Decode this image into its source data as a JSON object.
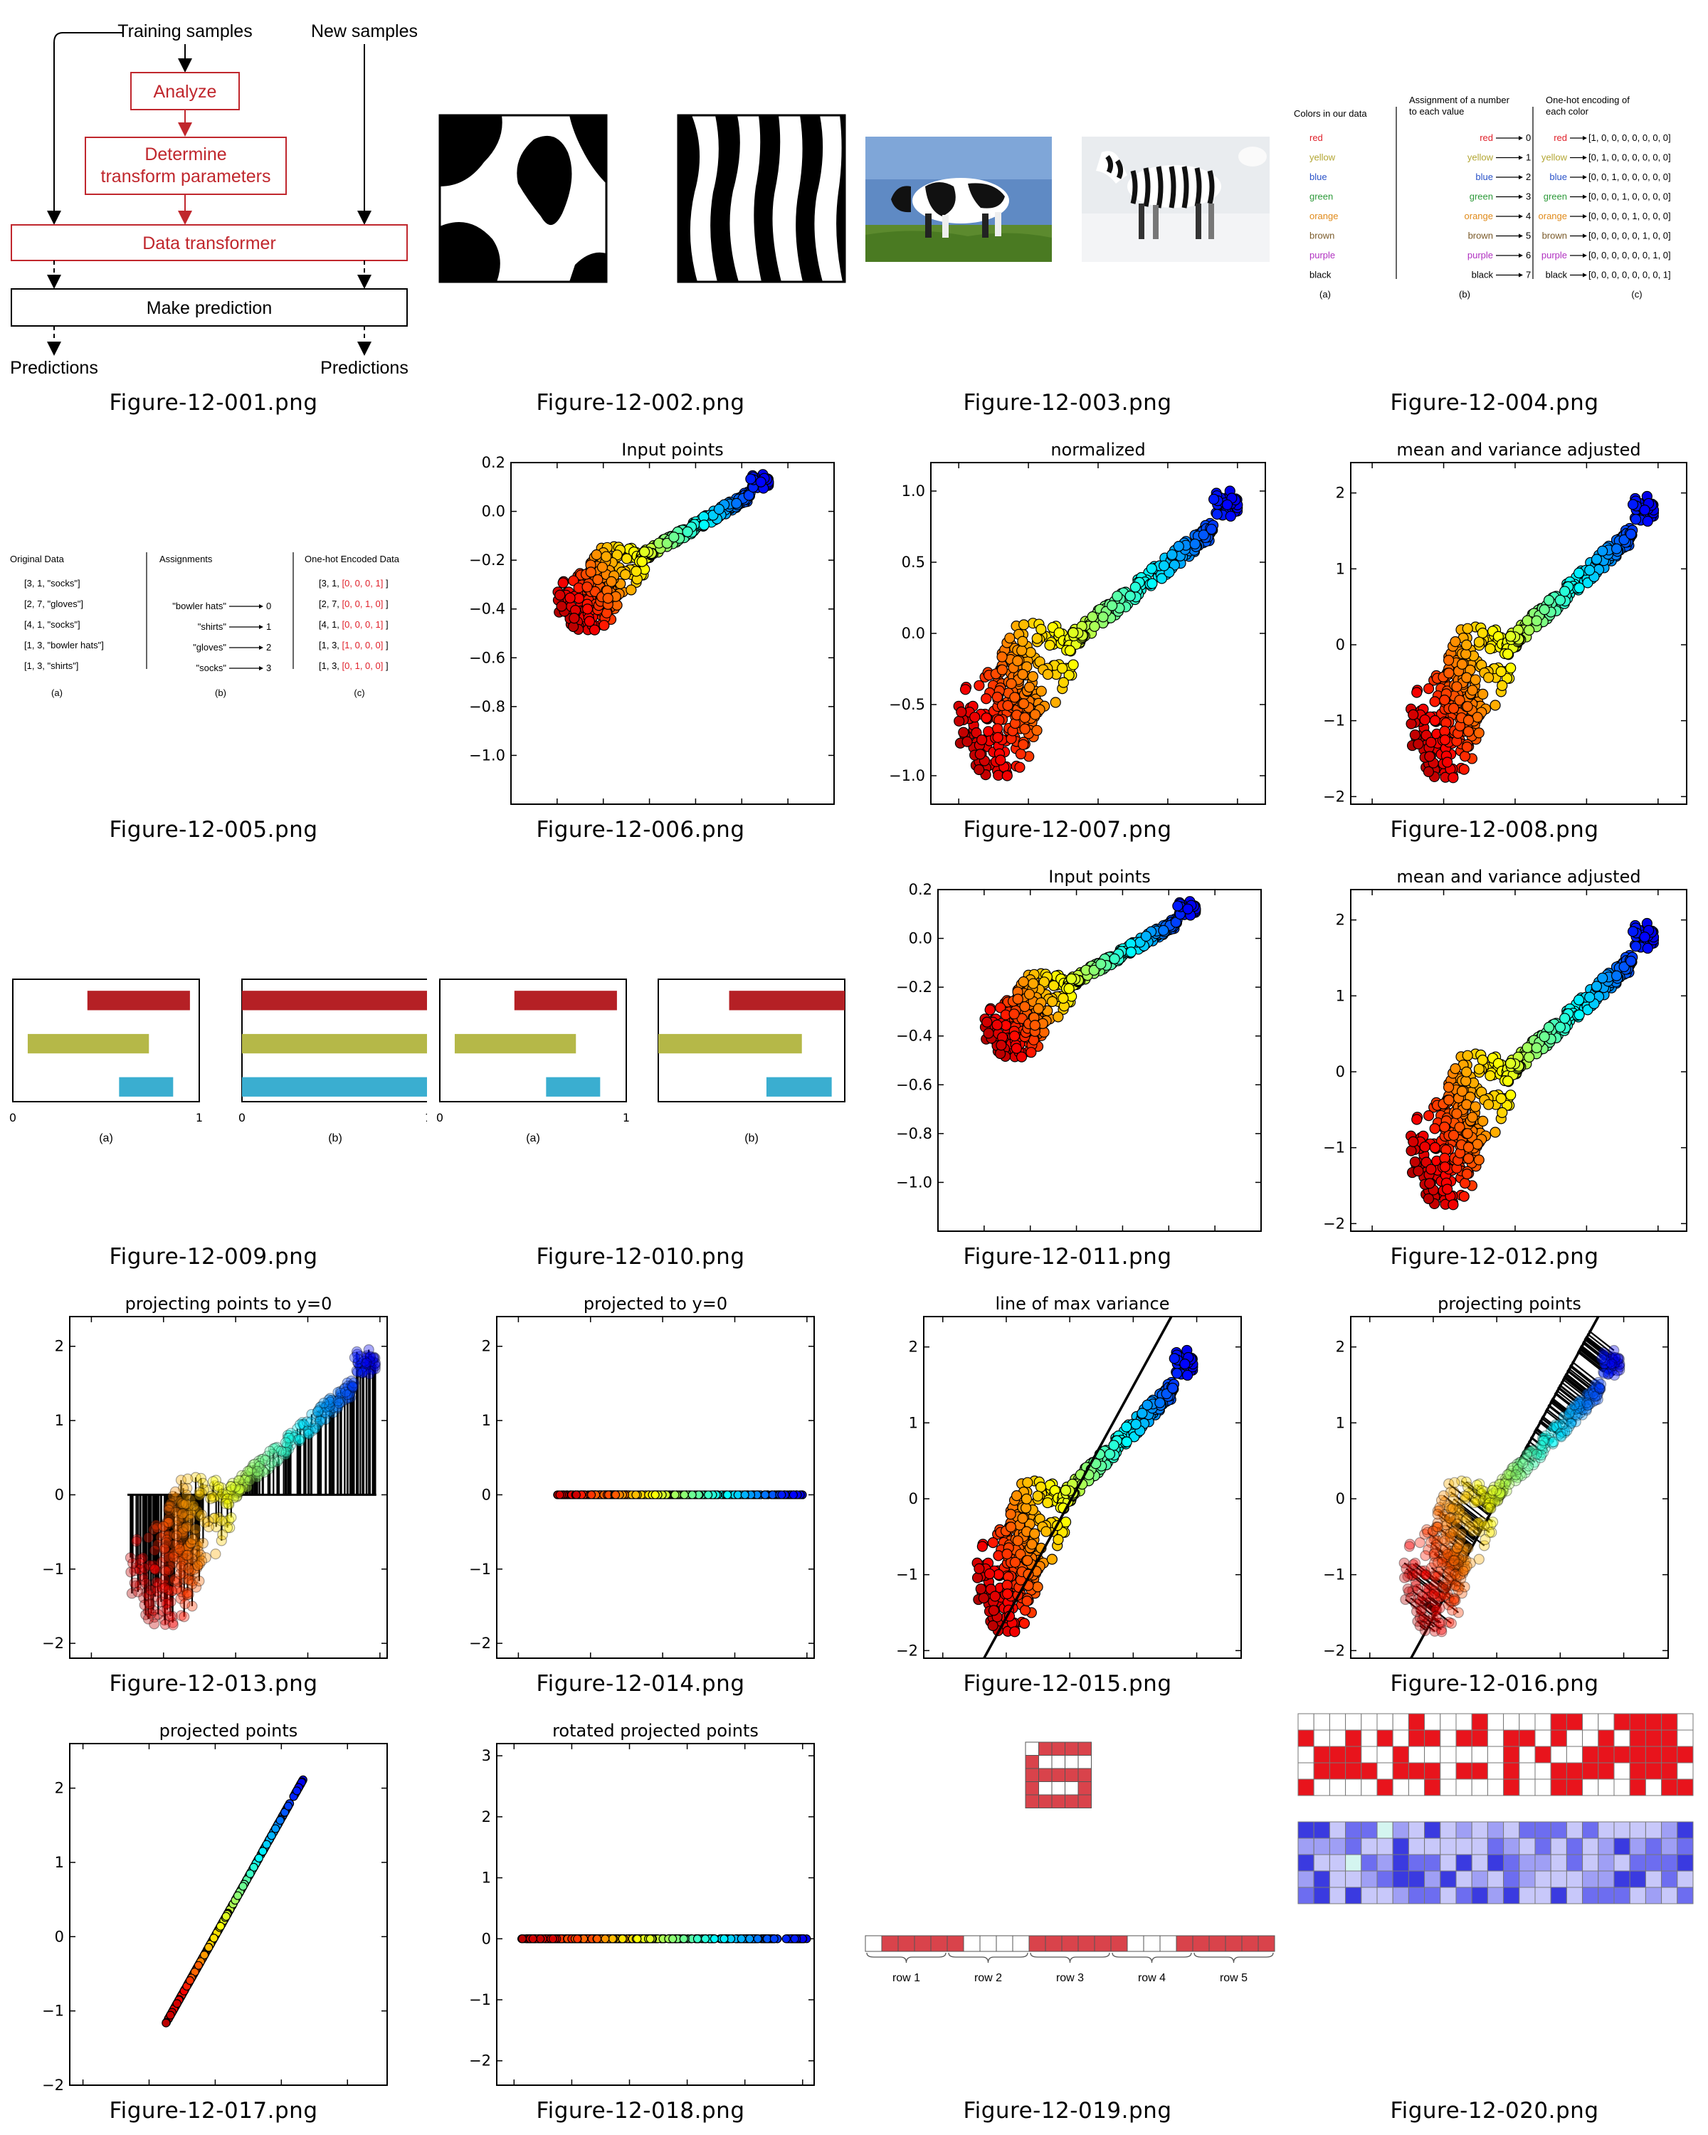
{
  "captions": [
    "Figure-12-001.png",
    "Figure-12-002.png",
    "Figure-12-003.png",
    "Figure-12-004.png",
    "Figure-12-005.png",
    "Figure-12-006.png",
    "Figure-12-007.png",
    "Figure-12-008.png",
    "Figure-12-009.png",
    "Figure-12-010.png",
    "Figure-12-011.png",
    "Figure-12-012.png",
    "Figure-12-013.png",
    "Figure-12-014.png",
    "Figure-12-015.png",
    "Figure-12-016.png",
    "Figure-12-017.png",
    "Figure-12-018.png",
    "Figure-12-019.png",
    "Figure-12-020.png"
  ],
  "fig1": {
    "training": "Training samples",
    "new": "New samples",
    "analyze": "Analyze",
    "determine1": "Determine",
    "determine2": "transform parameters",
    "transformer": "Data transformer",
    "predict": "Make prediction",
    "pred_left": "Predictions",
    "pred_right": "Predictions",
    "accent": "#c0272d"
  },
  "fig4": {
    "col_a": "Colors in our data",
    "col_b1": "Assignment of a number",
    "col_b2": "to each value",
    "col_c1": "One-hot encoding of",
    "col_c2": "each color",
    "colors": [
      {
        "name": "red",
        "hex": "#e0202a",
        "num": "0",
        "code": "[1, 0, 0, 0, 0, 0, 0, 0]"
      },
      {
        "name": "yellow",
        "hex": "#b3a633",
        "num": "1",
        "code": "[0, 1, 0, 0, 0, 0, 0, 0]"
      },
      {
        "name": "blue",
        "hex": "#2a52c8",
        "num": "2",
        "code": "[0, 0, 1, 0, 0, 0, 0, 0]"
      },
      {
        "name": "green",
        "hex": "#2e9a3a",
        "num": "3",
        "code": "[0, 0, 0, 1, 0, 0, 0, 0]"
      },
      {
        "name": "orange",
        "hex": "#e08a1a",
        "num": "4",
        "code": "[0, 0, 0, 0, 1, 0, 0, 0]"
      },
      {
        "name": "brown",
        "hex": "#7a5a2a",
        "num": "5",
        "code": "[0, 0, 0, 0, 0, 1, 0, 0]"
      },
      {
        "name": "purple",
        "hex": "#b030c0",
        "num": "6",
        "code": "[0, 0, 0, 0, 0, 0, 1, 0]"
      },
      {
        "name": "black",
        "hex": "#000000",
        "num": "7",
        "code": "[0, 0, 0, 0, 0, 0, 0, 1]"
      }
    ],
    "sub": [
      "(a)",
      "(b)",
      "(c)"
    ]
  },
  "fig5": {
    "col_a": "Original Data",
    "col_b": "Assignments",
    "col_c": "One-hot Encoded Data",
    "rows_a": [
      "[3, 1, \"socks\"]",
      "[2, 7, \"gloves\"]",
      "[4, 1, \"socks\"]",
      "[1, 3, \"bowler hats\"]",
      "[1, 3, \"shirts\"]"
    ],
    "assign": [
      {
        "label": "\"bowler hats\"",
        "num": "0"
      },
      {
        "label": "\"shirts\"",
        "num": "1"
      },
      {
        "label": "\"gloves\"",
        "num": "2"
      },
      {
        "label": "\"socks\"",
        "num": "3"
      }
    ],
    "rows_c_prefix": [
      "[3, 1, ",
      "[2, 7, ",
      "[4, 1, ",
      "[1, 3, ",
      "[1, 3, "
    ],
    "rows_c_code": [
      "[0, 0, 0, 1]",
      "[0, 0, 1, 0]",
      "[0, 0, 0, 1]",
      "[1, 0, 0, 0]",
      "[0, 1, 0, 0]"
    ],
    "rows_c_suffix": " ]",
    "sub": [
      "(a)",
      "(b)",
      "(c)"
    ]
  },
  "bars": {
    "colors": [
      "#b52025",
      "#b5b848",
      "#3aaed0"
    ],
    "sub_a": "(a)",
    "sub_b": "(b)",
    "tick0": "0",
    "tick1": "1"
  },
  "plots": {
    "fig6_title": "Input points",
    "fig7_title": "normalized",
    "fig8_title": "mean and variance adjusted",
    "fig11_title": "Input points",
    "fig12_title": "mean and variance adjusted",
    "fig13_title": "projecting points to y=0",
    "fig14_title": "projected to y=0",
    "fig15_title": "line of max variance",
    "fig16_title": "projecting points",
    "fig17_title": "projected points",
    "fig18_title": "rotated projected points"
  },
  "fig19": {
    "rows": [
      "row 1",
      "row 2",
      "row 3",
      "row 4",
      "row 5"
    ],
    "fill": "#d9434b"
  },
  "fig20": {
    "red": "#e8141c",
    "blues": [
      "#3a3ae0",
      "#6d6df0",
      "#9f9ff5",
      "#c8c8fa",
      "#d4f5f0"
    ]
  }
}
